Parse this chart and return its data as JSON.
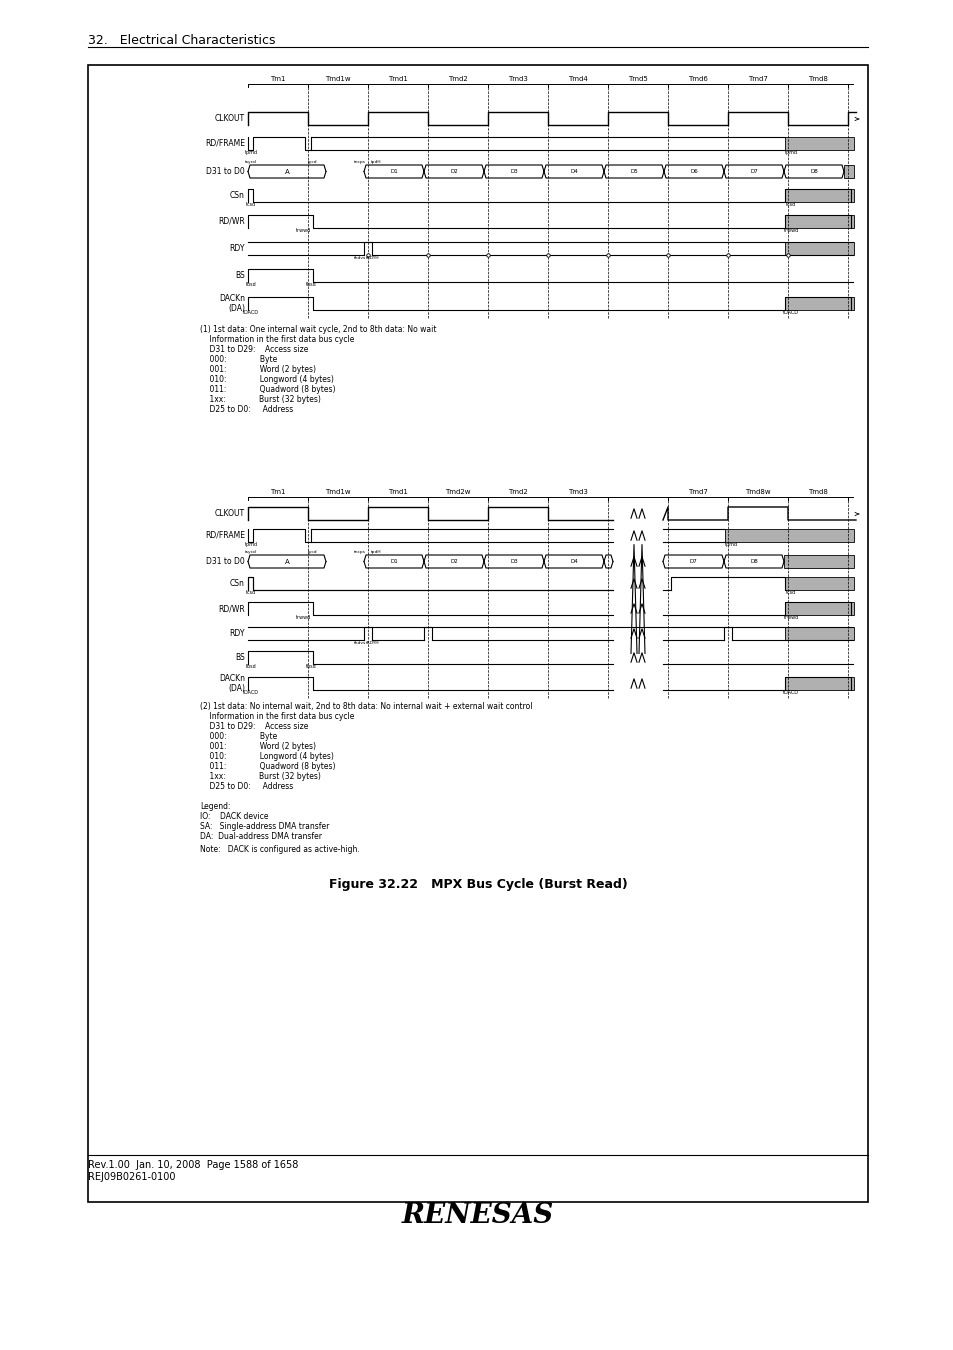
{
  "title": "Figure 32.22   MPX Bus Cycle (Burst Read)",
  "header_text": "32.   Electrical Characteristics",
  "bg_color": "#ffffff",
  "diagram1_period_labels": [
    "Tm1",
    "Tmd1w",
    "Tmd1",
    "Tmd2",
    "Tmd3",
    "Tmd4",
    "Tmd5",
    "Tmd6",
    "Tmd7",
    "Tmd8"
  ],
  "diagram2_period_labels": [
    "Tm1",
    "Tmd1w",
    "Tmd1",
    "Tmd2w",
    "Tmd2",
    "Tmd3",
    "",
    "Tmd7",
    "Tmd8w",
    "Tmd8"
  ],
  "signals": [
    "CLKOUT",
    "RD/FRAME",
    "D31 to D0",
    "CSn",
    "RD/WR",
    "RDY",
    "BS",
    "DACKn\n(DA)"
  ],
  "note1_lines": [
    "(1) 1st data: One internal wait cycle, 2nd to 8th data: No wait",
    "    Information in the first data bus cycle",
    "    D31 to D29:    Access size",
    "    000:              Byte",
    "    001:              Word (2 bytes)",
    "    010:              Longword (4 bytes)",
    "    011:              Quadword (8 bytes)",
    "    1xx:              Burst (32 bytes)",
    "    D25 to D0:     Address"
  ],
  "note2_lines": [
    "(2) 1st data: No internal wait, 2nd to 8th data: No internal wait + external wait control",
    "    Information in the first data bus cycle",
    "    D31 to D29:    Access size",
    "    000:              Byte",
    "    001:              Word (2 bytes)",
    "    010:              Longword (4 bytes)",
    "    011:              Quadword (8 bytes)",
    "    1xx:              Burst (32 bytes)",
    "    D25 to D0:     Address"
  ],
  "legend_lines": [
    "Legend:",
    "IO:    DACK device",
    "SA:   Single-address DMA transfer",
    "DA:  Dual-address DMA transfer"
  ],
  "note_bottom": "Note:   DACK is configured as active-high.",
  "footer_left": "Rev.1.00  Jan. 10, 2008  Page 1588 of 1658",
  "footer_left2": "REJ09B0261-0100",
  "renesas_text": "RENESAS"
}
